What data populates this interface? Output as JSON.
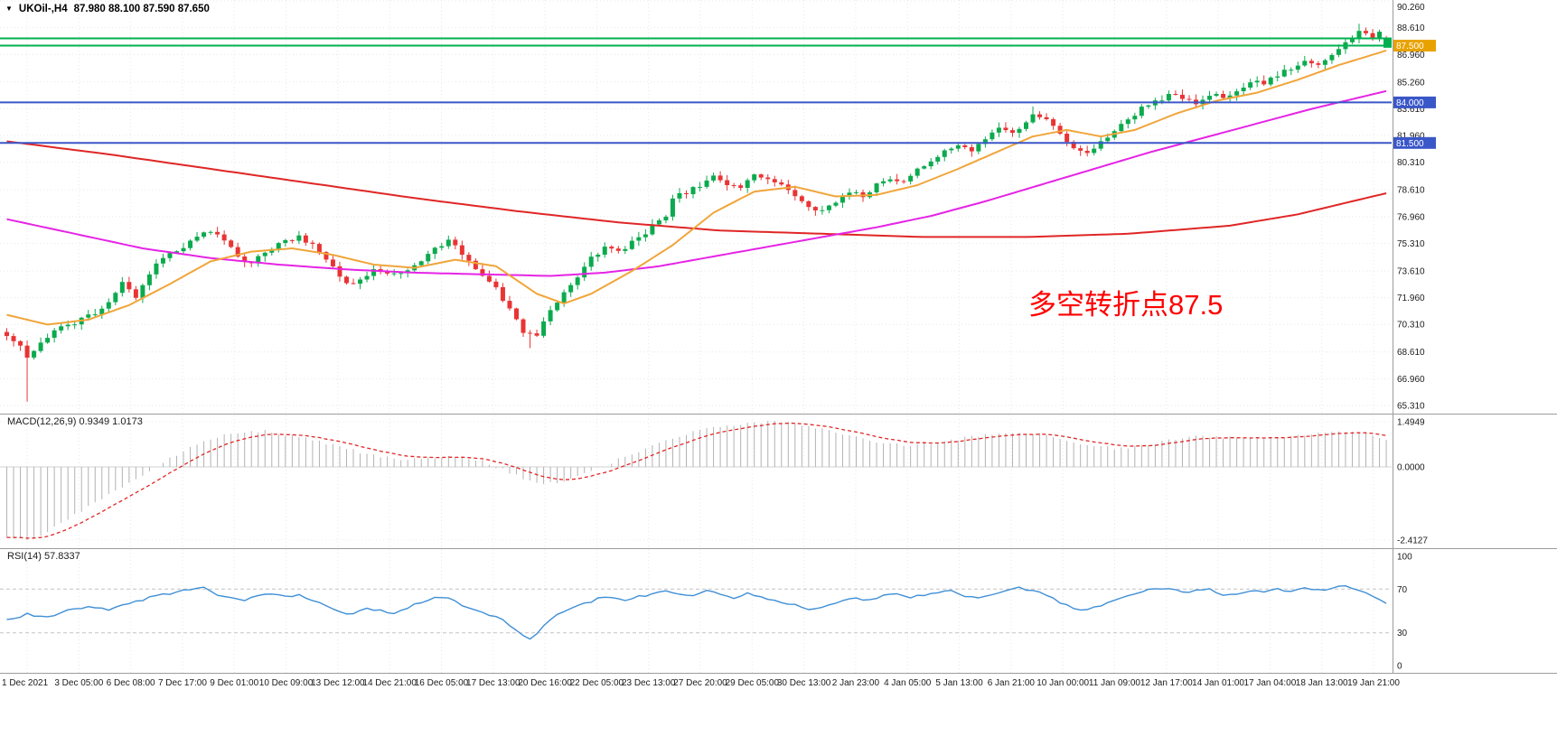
{
  "header": {
    "symbol_tf": "UKOil-,H4",
    "ohlc_text": "87.980 88.100 87.590 87.650",
    "dropdown_icon": "▼"
  },
  "chart_data": {
    "type": "candlestick",
    "title": "UKOil-,H4",
    "bars": 204,
    "price_axis": {
      "min": 65.31,
      "max": 90.26,
      "ticks": [
        "90.260",
        "88.610",
        "86.960",
        "85.260",
        "83.610",
        "81.960",
        "80.310",
        "78.610",
        "76.960",
        "75.310",
        "73.610",
        "71.960",
        "70.310",
        "68.610",
        "66.960",
        "65.310"
      ]
    },
    "x_labels": [
      "1 Dec 2021",
      "3 Dec 05:00",
      "6 Dec 08:00",
      "7 Dec 17:00",
      "9 Dec 01:00",
      "10 Dec 09:00",
      "13 Dec 12:00",
      "14 Dec 21:00",
      "16 Dec 05:00",
      "17 Dec 13:00",
      "20 Dec 16:00",
      "22 Dec 05:00",
      "23 Dec 13:00",
      "27 Dec 20:00",
      "29 Dec 05:00",
      "30 Dec 13:00",
      "2 Jan 23:00",
      "4 Jan 05:00",
      "5 Jan 13:00",
      "6 Jan 21:00",
      "10 Jan 00:00",
      "11 Jan 09:00",
      "12 Jan 17:00",
      "14 Jan 01:00",
      "17 Jan 04:00",
      "18 Jan 13:00",
      "19 Jan 21:00"
    ],
    "candle_colors": {
      "up": "#0caa4e",
      "down": "#e93434"
    },
    "last_bar": {
      "open": 87.98,
      "high": 88.1,
      "low": 87.59,
      "close": 87.65
    },
    "price_path": [
      [
        0,
        69.6
      ],
      [
        2,
        69.0
      ],
      [
        3,
        68.2
      ],
      [
        5,
        69.3
      ],
      [
        8,
        70.1
      ],
      [
        11,
        70.6
      ],
      [
        14,
        71.3
      ],
      [
        17,
        72.8
      ],
      [
        19,
        72.0
      ],
      [
        22,
        74.2
      ],
      [
        26,
        75.1
      ],
      [
        30,
        76.1
      ],
      [
        32,
        75.6
      ],
      [
        34,
        74.4
      ],
      [
        36,
        74.2
      ],
      [
        38,
        74.8
      ],
      [
        40,
        75.2
      ],
      [
        43,
        75.7
      ],
      [
        46,
        74.9
      ],
      [
        49,
        73.2
      ],
      [
        51,
        72.7
      ],
      [
        54,
        73.8
      ],
      [
        57,
        73.4
      ],
      [
        60,
        73.9
      ],
      [
        63,
        75.0
      ],
      [
        65,
        75.5
      ],
      [
        67,
        74.6
      ],
      [
        70,
        73.2
      ],
      [
        72,
        72.5
      ],
      [
        74,
        71.2
      ],
      [
        76,
        69.9
      ],
      [
        78,
        69.6
      ],
      [
        80,
        71.2
      ],
      [
        82,
        72.3
      ],
      [
        84,
        73.1
      ],
      [
        86,
        74.4
      ],
      [
        88,
        75.0
      ],
      [
        90,
        74.8
      ],
      [
        93,
        75.6
      ],
      [
        95,
        76.4
      ],
      [
        97,
        76.9
      ],
      [
        98,
        78.2
      ],
      [
        100,
        78.4
      ],
      [
        102,
        78.9
      ],
      [
        104,
        79.4
      ],
      [
        106,
        79.0
      ],
      [
        108,
        78.8
      ],
      [
        110,
        79.5
      ],
      [
        112,
        79.2
      ],
      [
        114,
        78.9
      ],
      [
        116,
        78.3
      ],
      [
        118,
        77.6
      ],
      [
        120,
        77.3
      ],
      [
        122,
        77.9
      ],
      [
        124,
        78.5
      ],
      [
        126,
        78.2
      ],
      [
        128,
        78.9
      ],
      [
        130,
        79.3
      ],
      [
        132,
        79.0
      ],
      [
        134,
        79.8
      ],
      [
        136,
        80.4
      ],
      [
        138,
        81.0
      ],
      [
        140,
        81.3
      ],
      [
        142,
        80.9
      ],
      [
        144,
        81.8
      ],
      [
        146,
        82.4
      ],
      [
        148,
        82.1
      ],
      [
        150,
        82.9
      ],
      [
        151,
        83.2
      ],
      [
        153,
        82.9
      ],
      [
        155,
        82.1
      ],
      [
        157,
        81.3
      ],
      [
        159,
        81.0
      ],
      [
        161,
        81.5
      ],
      [
        163,
        82.3
      ],
      [
        165,
        83.0
      ],
      [
        167,
        83.6
      ],
      [
        169,
        84.0
      ],
      [
        171,
        84.5
      ],
      [
        173,
        84.2
      ],
      [
        175,
        84.0
      ],
      [
        177,
        84.5
      ],
      [
        179,
        84.3
      ],
      [
        181,
        84.8
      ],
      [
        183,
        85.3
      ],
      [
        185,
        85.1
      ],
      [
        187,
        85.7
      ],
      [
        189,
        86.1
      ],
      [
        191,
        86.5
      ],
      [
        193,
        86.3
      ],
      [
        195,
        87.0
      ],
      [
        197,
        87.7
      ],
      [
        199,
        88.3
      ],
      [
        201,
        88.1
      ],
      [
        202,
        88.5
      ],
      [
        203,
        87.65
      ]
    ],
    "wick_overrides": {
      "lows": {
        "3": 65.55,
        "77": 68.85
      },
      "highs": {
        "151": 83.75,
        "199": 88.85
      }
    },
    "hlines": [
      {
        "price": 87.95,
        "color": "#00b050",
        "width": 2,
        "label": null,
        "label_bg": null
      },
      {
        "price": 87.5,
        "color": "#00b050",
        "width": 2,
        "label": "87.500",
        "label_bg": "#e8a200"
      },
      {
        "price": 84.0,
        "color": "#3a57c8",
        "width": 2,
        "label": "84.000",
        "label_bg": "#3a57c8"
      },
      {
        "price": 81.5,
        "color": "#3a57c8",
        "width": 2,
        "label": "81.500",
        "label_bg": "#3a57c8"
      }
    ],
    "moving_averages": [
      {
        "name": "slow-ma-red",
        "color": "#e02626",
        "width": 2,
        "points": [
          [
            0,
            81.6
          ],
          [
            15,
            80.8
          ],
          [
            30,
            79.9
          ],
          [
            45,
            79.0
          ],
          [
            60,
            78.1
          ],
          [
            75,
            77.3
          ],
          [
            90,
            76.6
          ],
          [
            105,
            76.1
          ],
          [
            120,
            75.9
          ],
          [
            135,
            75.7
          ],
          [
            150,
            75.7
          ],
          [
            165,
            75.9
          ],
          [
            180,
            76.4
          ],
          [
            190,
            77.1
          ],
          [
            197,
            77.8
          ],
          [
            203,
            78.4
          ]
        ]
      },
      {
        "name": "medium-ma-magenta",
        "color": "#e524e5",
        "width": 2,
        "points": [
          [
            0,
            76.8
          ],
          [
            10,
            75.9
          ],
          [
            20,
            75.0
          ],
          [
            30,
            74.4
          ],
          [
            40,
            74.0
          ],
          [
            50,
            73.7
          ],
          [
            60,
            73.5
          ],
          [
            70,
            73.4
          ],
          [
            80,
            73.3
          ],
          [
            88,
            73.5
          ],
          [
            96,
            73.9
          ],
          [
            104,
            74.5
          ],
          [
            112,
            75.1
          ],
          [
            120,
            75.7
          ],
          [
            128,
            76.3
          ],
          [
            136,
            77.0
          ],
          [
            144,
            77.9
          ],
          [
            152,
            78.9
          ],
          [
            160,
            79.9
          ],
          [
            168,
            80.9
          ],
          [
            176,
            81.8
          ],
          [
            184,
            82.7
          ],
          [
            192,
            83.6
          ],
          [
            198,
            84.2
          ],
          [
            203,
            84.7
          ]
        ]
      },
      {
        "name": "fast-ma-orange",
        "color": "#f0a53a",
        "width": 2,
        "points": [
          [
            0,
            70.9
          ],
          [
            6,
            70.3
          ],
          [
            12,
            70.6
          ],
          [
            18,
            71.5
          ],
          [
            24,
            72.8
          ],
          [
            30,
            74.2
          ],
          [
            36,
            74.8
          ],
          [
            42,
            75.0
          ],
          [
            48,
            74.6
          ],
          [
            54,
            74.0
          ],
          [
            60,
            73.8
          ],
          [
            66,
            74.3
          ],
          [
            72,
            73.9
          ],
          [
            78,
            72.2
          ],
          [
            82,
            71.6
          ],
          [
            86,
            72.2
          ],
          [
            92,
            73.6
          ],
          [
            98,
            75.2
          ],
          [
            104,
            77.2
          ],
          [
            110,
            78.5
          ],
          [
            116,
            78.8
          ],
          [
            122,
            78.2
          ],
          [
            128,
            78.3
          ],
          [
            134,
            78.9
          ],
          [
            140,
            79.9
          ],
          [
            146,
            81.0
          ],
          [
            151,
            81.9
          ],
          [
            156,
            82.3
          ],
          [
            161,
            81.9
          ],
          [
            166,
            82.3
          ],
          [
            172,
            83.3
          ],
          [
            178,
            84.1
          ],
          [
            184,
            84.6
          ],
          [
            190,
            85.4
          ],
          [
            196,
            86.3
          ],
          [
            203,
            87.2
          ]
        ]
      }
    ],
    "annotation": {
      "text": "多空转折点87.5",
      "color": "#ff0000"
    },
    "macd": {
      "title_line": "MACD(12,26,9) 0.9349 1.0173",
      "main_value": "0.9349",
      "signal_value": "1.0173",
      "axis_ticks": [
        "1.4949",
        "0.0000",
        "-2.4127"
      ],
      "range": {
        "min": -2.4127,
        "max": 1.4949
      },
      "histogram_color": "#b2b2b2",
      "signal_color": "#e02626",
      "path": [
        [
          0,
          -2.35
        ],
        [
          3,
          -2.41
        ],
        [
          6,
          -2.15
        ],
        [
          10,
          -1.6
        ],
        [
          14,
          -1.05
        ],
        [
          18,
          -0.55
        ],
        [
          22,
          0.0
        ],
        [
          26,
          0.55
        ],
        [
          30,
          0.95
        ],
        [
          34,
          1.15
        ],
        [
          38,
          1.18
        ],
        [
          42,
          1.05
        ],
        [
          46,
          0.85
        ],
        [
          50,
          0.6
        ],
        [
          54,
          0.38
        ],
        [
          58,
          0.25
        ],
        [
          62,
          0.28
        ],
        [
          66,
          0.34
        ],
        [
          70,
          0.18
        ],
        [
          74,
          -0.18
        ],
        [
          78,
          -0.55
        ],
        [
          82,
          -0.5
        ],
        [
          86,
          -0.15
        ],
        [
          90,
          0.25
        ],
        [
          94,
          0.6
        ],
        [
          98,
          0.95
        ],
        [
          102,
          1.2
        ],
        [
          106,
          1.35
        ],
        [
          110,
          1.45
        ],
        [
          113,
          1.49
        ],
        [
          116,
          1.42
        ],
        [
          120,
          1.25
        ],
        [
          124,
          1.05
        ],
        [
          128,
          0.85
        ],
        [
          132,
          0.72
        ],
        [
          136,
          0.78
        ],
        [
          140,
          0.92
        ],
        [
          144,
          1.05
        ],
        [
          148,
          1.12
        ],
        [
          152,
          1.1
        ],
        [
          156,
          0.9
        ],
        [
          160,
          0.68
        ],
        [
          164,
          0.6
        ],
        [
          168,
          0.75
        ],
        [
          172,
          0.92
        ],
        [
          176,
          1.02
        ],
        [
          180,
          0.98
        ],
        [
          184,
          0.94
        ],
        [
          188,
          1.0
        ],
        [
          192,
          1.08
        ],
        [
          196,
          1.18
        ],
        [
          199,
          1.15
        ],
        [
          201,
          1.05
        ],
        [
          203,
          0.93
        ]
      ]
    },
    "rsi": {
      "title_line": "RSI(14) 57.8337",
      "value": "57.8337",
      "axis_ticks": [
        "100",
        "70",
        "30",
        "0"
      ],
      "levels": [
        70,
        30
      ],
      "color": "#3f8fd6",
      "path": [
        [
          0,
          42
        ],
        [
          3,
          47
        ],
        [
          6,
          44
        ],
        [
          9,
          50
        ],
        [
          12,
          54
        ],
        [
          15,
          51
        ],
        [
          18,
          57
        ],
        [
          21,
          62
        ],
        [
          24,
          66
        ],
        [
          27,
          70
        ],
        [
          29,
          71
        ],
        [
          31,
          65
        ],
        [
          33,
          63
        ],
        [
          35,
          60
        ],
        [
          37,
          64
        ],
        [
          39,
          66
        ],
        [
          41,
          63
        ],
        [
          43,
          65
        ],
        [
          45,
          60
        ],
        [
          47,
          55
        ],
        [
          49,
          49
        ],
        [
          51,
          47
        ],
        [
          53,
          53
        ],
        [
          55,
          50
        ],
        [
          57,
          48
        ],
        [
          59,
          53
        ],
        [
          61,
          58
        ],
        [
          63,
          63
        ],
        [
          65,
          62
        ],
        [
          67,
          55
        ],
        [
          69,
          50
        ],
        [
          71,
          46
        ],
        [
          73,
          42
        ],
        [
          75,
          33
        ],
        [
          77,
          24
        ],
        [
          79,
          36
        ],
        [
          81,
          46
        ],
        [
          83,
          52
        ],
        [
          85,
          57
        ],
        [
          87,
          61
        ],
        [
          89,
          63
        ],
        [
          91,
          60
        ],
        [
          93,
          63
        ],
        [
          95,
          66
        ],
        [
          97,
          69
        ],
        [
          99,
          66
        ],
        [
          101,
          64
        ],
        [
          103,
          68
        ],
        [
          105,
          65
        ],
        [
          107,
          62
        ],
        [
          109,
          66
        ],
        [
          111,
          63
        ],
        [
          113,
          60
        ],
        [
          115,
          57
        ],
        [
          117,
          53
        ],
        [
          119,
          51
        ],
        [
          121,
          55
        ],
        [
          123,
          59
        ],
        [
          125,
          62
        ],
        [
          127,
          60
        ],
        [
          129,
          64
        ],
        [
          131,
          66
        ],
        [
          133,
          62
        ],
        [
          135,
          65
        ],
        [
          137,
          67
        ],
        [
          139,
          69
        ],
        [
          141,
          64
        ],
        [
          143,
          61
        ],
        [
          145,
          66
        ],
        [
          147,
          69
        ],
        [
          149,
          71
        ],
        [
          151,
          69
        ],
        [
          153,
          64
        ],
        [
          155,
          58
        ],
        [
          157,
          53
        ],
        [
          159,
          51
        ],
        [
          161,
          55
        ],
        [
          163,
          60
        ],
        [
          165,
          64
        ],
        [
          167,
          68
        ],
        [
          169,
          70
        ],
        [
          171,
          71
        ],
        [
          173,
          67
        ],
        [
          175,
          69
        ],
        [
          177,
          70
        ],
        [
          179,
          64
        ],
        [
          181,
          66
        ],
        [
          183,
          69
        ],
        [
          185,
          67
        ],
        [
          187,
          70
        ],
        [
          189,
          68
        ],
        [
          191,
          71
        ],
        [
          193,
          69
        ],
        [
          195,
          71
        ],
        [
          197,
          73
        ],
        [
          199,
          69
        ],
        [
          201,
          64
        ],
        [
          203,
          57.8
        ]
      ]
    }
  }
}
